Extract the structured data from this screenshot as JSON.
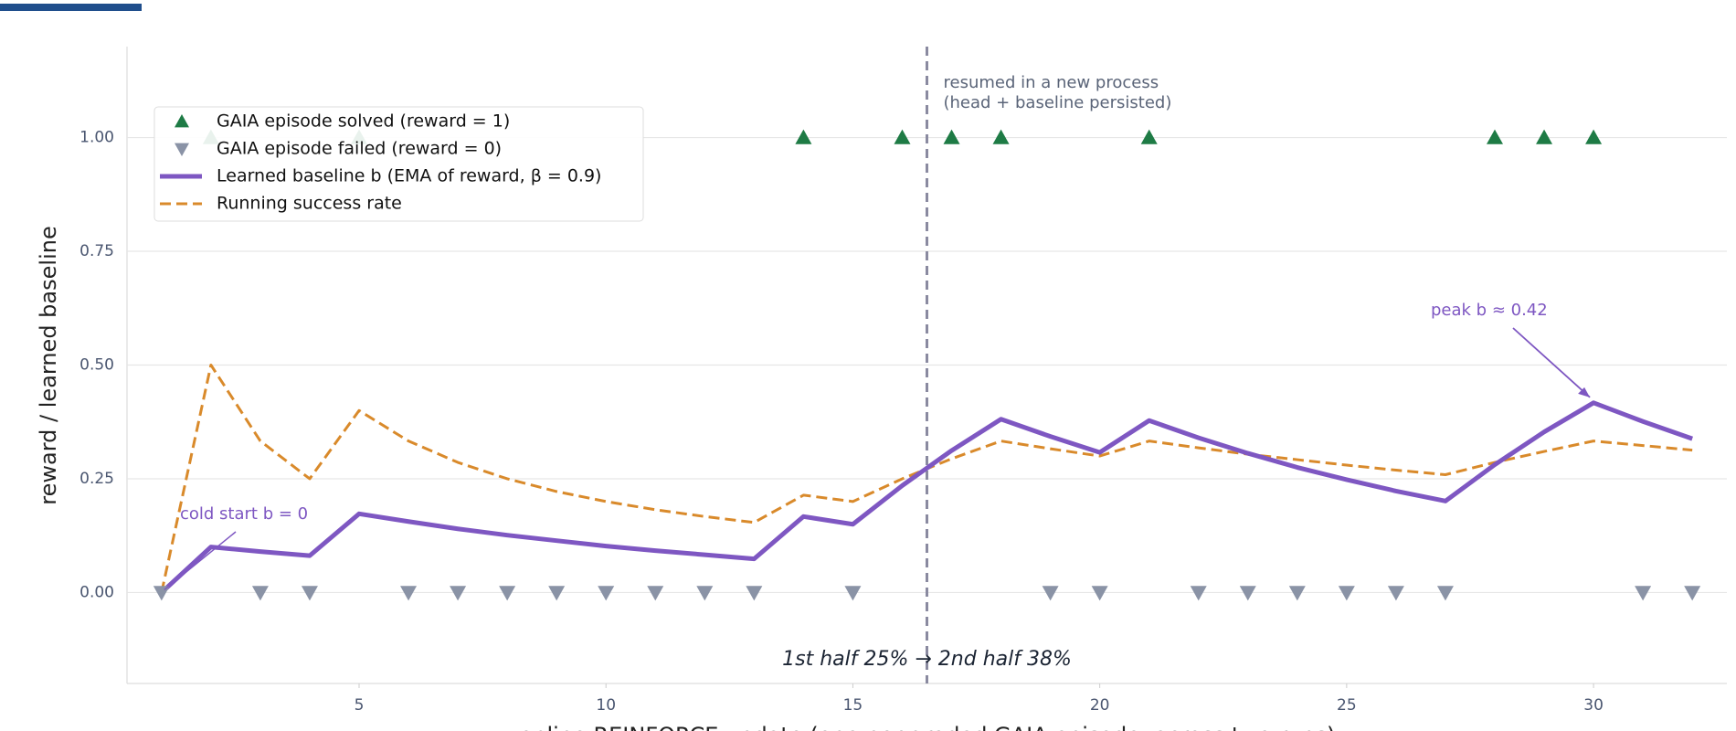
{
  "chart_data": {
    "type": "line",
    "xlabel": "online REINFORCE update  (one per graded GAIA episode, across two runs)",
    "ylabel": "reward  /  learned baseline",
    "xlim": [
      0.3,
      32.7
    ],
    "ylim": [
      -0.2,
      1.2
    ],
    "xticks": [
      5,
      10,
      15,
      20,
      25,
      30
    ],
    "yticks": [
      {
        "value": 0,
        "label": "0.00"
      },
      {
        "value": 0.25,
        "label": "0.25"
      },
      {
        "value": 0.5,
        "label": "0.50"
      },
      {
        "value": 0.75,
        "label": "0.75"
      },
      {
        "value": 1,
        "label": "1.00"
      }
    ],
    "grid": true,
    "legend": "upper left",
    "series": [
      {
        "name": "GAIA episode solved (reward = 1)",
        "kind": "scatter",
        "marker": "triangle-up",
        "color": "#1e7b45",
        "x": [
          2,
          5,
          14,
          16,
          17,
          18,
          21,
          28,
          29,
          30
        ],
        "values": [
          1,
          1,
          1,
          1,
          1,
          1,
          1,
          1,
          1,
          1
        ]
      },
      {
        "name": "GAIA episode failed (reward = 0)",
        "kind": "scatter",
        "marker": "triangle-down",
        "color": "#8a93a6",
        "x": [
          1,
          3,
          4,
          6,
          7,
          8,
          9,
          10,
          11,
          12,
          13,
          15,
          19,
          20,
          22,
          23,
          24,
          25,
          26,
          27,
          31,
          32
        ],
        "values": [
          0,
          0,
          0,
          0,
          0,
          0,
          0,
          0,
          0,
          0,
          0,
          0,
          0,
          0,
          0,
          0,
          0,
          0,
          0,
          0,
          0,
          0
        ]
      },
      {
        "name": "Learned baseline b  (EMA of reward, β = 0.9)",
        "kind": "line",
        "dash": false,
        "color": "#7e57c2",
        "x": [
          1,
          2,
          3,
          4,
          5,
          6,
          7,
          8,
          9,
          10,
          11,
          12,
          13,
          14,
          15,
          16,
          17,
          18,
          19,
          20,
          21,
          22,
          23,
          24,
          25,
          26,
          27,
          28,
          29,
          30,
          31,
          32
        ],
        "values": [
          0,
          0.1,
          0.09,
          0.081,
          0.173,
          0.156,
          0.14,
          0.126,
          0.114,
          0.102,
          0.092,
          0.083,
          0.074,
          0.167,
          0.15,
          0.235,
          0.312,
          0.381,
          0.343,
          0.308,
          0.378,
          0.34,
          0.306,
          0.275,
          0.248,
          0.223,
          0.201,
          0.281,
          0.353,
          0.417,
          0.376,
          0.338
        ]
      },
      {
        "name": "Running success rate",
        "kind": "line",
        "dash": true,
        "color": "#d98a2b",
        "x": [
          1,
          2,
          3,
          4,
          5,
          6,
          7,
          8,
          9,
          10,
          11,
          12,
          13,
          14,
          15,
          16,
          17,
          18,
          19,
          20,
          21,
          22,
          23,
          24,
          25,
          26,
          27,
          28,
          29,
          30,
          31,
          32
        ],
        "values": [
          0,
          0.5,
          0.333,
          0.25,
          0.4,
          0.333,
          0.286,
          0.25,
          0.222,
          0.2,
          0.182,
          0.167,
          0.154,
          0.214,
          0.2,
          0.25,
          0.294,
          0.333,
          0.316,
          0.3,
          0.333,
          0.318,
          0.304,
          0.292,
          0.28,
          0.269,
          0.259,
          0.286,
          0.31,
          0.333,
          0.323,
          0.313
        ]
      }
    ],
    "vline": {
      "x": 16.5,
      "color": "#8a8aa0"
    },
    "annotations": {
      "resume_line1": "resumed in a new process",
      "resume_line2": "(head + baseline persisted)",
      "halves": "1st half 25%  →  2nd half 38%",
      "cold_start": "cold start  b = 0",
      "peak": "peak b ≈ 0.42"
    }
  }
}
